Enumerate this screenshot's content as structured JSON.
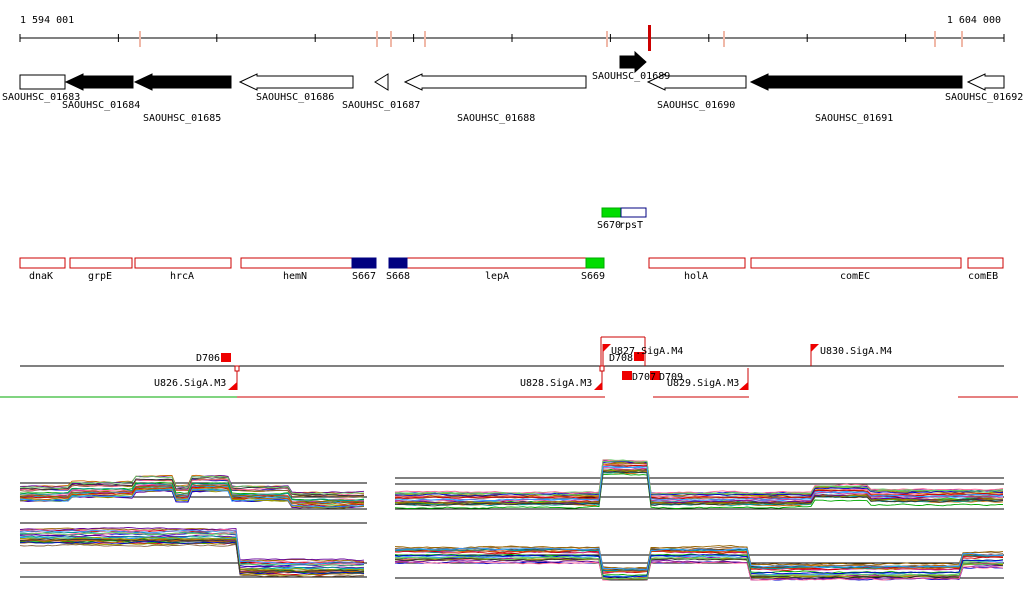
{
  "coordinates": {
    "start": "1 594 001",
    "end": "1 604 000"
  },
  "colors": {
    "red": "#cc0000",
    "green": "#00cc00",
    "navy": "#000080",
    "black": "#000000"
  },
  "genes": [
    {
      "label": "SAOUHSC_01683",
      "dir": "left",
      "fill": "white"
    },
    {
      "label": "SAOUHSC_01684",
      "dir": "left",
      "fill": "black"
    },
    {
      "label": "SAOUHSC_01685",
      "dir": "left",
      "fill": "black"
    },
    {
      "label": "SAOUHSC_01686",
      "dir": "left",
      "fill": "white"
    },
    {
      "label": "SAOUHSC_01687",
      "dir": "left",
      "fill": "white"
    },
    {
      "label": "SAOUHSC_01688",
      "dir": "left",
      "fill": "white"
    },
    {
      "label": "SAOUHSC_01689",
      "dir": "right",
      "fill": "black"
    },
    {
      "label": "SAOUHSC_01690",
      "dir": "left",
      "fill": "white"
    },
    {
      "label": "SAOUHSC_01691",
      "dir": "left",
      "fill": "black"
    },
    {
      "label": "SAOUHSC_01692",
      "dir": "left",
      "fill": "white"
    }
  ],
  "small_features": [
    {
      "label": "S670",
      "color": "green"
    },
    {
      "label": "rpsT",
      "color": "white"
    }
  ],
  "operon_features": [
    {
      "label": "dnaK"
    },
    {
      "label": "grpE"
    },
    {
      "label": "hrcA"
    },
    {
      "label": "hemN"
    },
    {
      "label": "S667"
    },
    {
      "label": "S668"
    },
    {
      "label": "lepA"
    },
    {
      "label": "S669"
    },
    {
      "label": "holA"
    },
    {
      "label": "comEC"
    },
    {
      "label": "comEB"
    }
  ],
  "regulatory": [
    {
      "label": "D706"
    },
    {
      "label": "U826.SigA.M3"
    },
    {
      "label": "U827.SigA.M4"
    },
    {
      "label": "D708"
    },
    {
      "label": "D707"
    },
    {
      "label": "D709"
    },
    {
      "label": "U828.SigA.M3"
    },
    {
      "label": "U829.SigA.M3"
    },
    {
      "label": "U830.SigA.M4"
    }
  ]
}
